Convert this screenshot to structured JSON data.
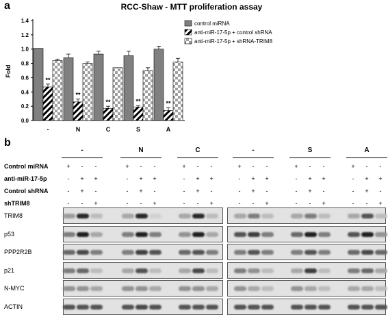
{
  "panel_a": "a",
  "panel_b": "b",
  "chart_data": {
    "type": "bar",
    "title": "RCC-Shaw - MTT proliferation assay",
    "ylabel": "Fold",
    "xlabel": "",
    "ylim": [
      0,
      1.4
    ],
    "yticks": [
      "0.0",
      "0.2",
      "0.4",
      "0.6",
      "0.8",
      "1.0",
      "1.2",
      "1.4"
    ],
    "categories": [
      "-",
      "N",
      "C",
      "S",
      "A"
    ],
    "series": [
      {
        "name": "control miRNA",
        "values": [
          1.01,
          0.88,
          0.93,
          0.91,
          1.0
        ],
        "errors": [
          0.0,
          0.05,
          0.04,
          0.06,
          0.04
        ],
        "pattern": "solid",
        "color": "#808080"
      },
      {
        "name": "anti-miR-17-5p + control shRNA",
        "values": [
          0.47,
          0.26,
          0.17,
          0.19,
          0.14
        ],
        "errors": [
          0.04,
          0.04,
          0.03,
          0.02,
          0.04
        ],
        "pattern": "hatch",
        "color": "#000000"
      },
      {
        "name": "anti-miR-17-5p + shRNA-TRIM8",
        "values": [
          0.84,
          0.8,
          0.74,
          0.7,
          0.82
        ],
        "errors": [
          0.02,
          0.02,
          0.0,
          0.04,
          0.05
        ],
        "pattern": "checker",
        "color": "#9a9a9a"
      }
    ],
    "annotations": [
      "**",
      "**",
      "**",
      "**",
      "**"
    ],
    "legend_position": "top-right"
  },
  "blot": {
    "groups": [
      "-",
      "N",
      "C",
      "-",
      "S",
      "A"
    ],
    "rows": [
      {
        "label": "Control miRNA",
        "pattern": [
          "+",
          "-",
          "-"
        ]
      },
      {
        "label": "anti-miR-17-5p",
        "pattern": [
          "-",
          "+",
          "+"
        ]
      },
      {
        "label": "Control shRNA",
        "pattern": [
          "-",
          "+",
          "-"
        ]
      },
      {
        "label": "shTRIM8",
        "pattern": [
          "-",
          "-",
          "+"
        ]
      }
    ],
    "proteins": [
      "TRIM8",
      "p53",
      "PPP2R2B",
      "p21",
      "N-MYC",
      "ACTIN"
    ]
  }
}
